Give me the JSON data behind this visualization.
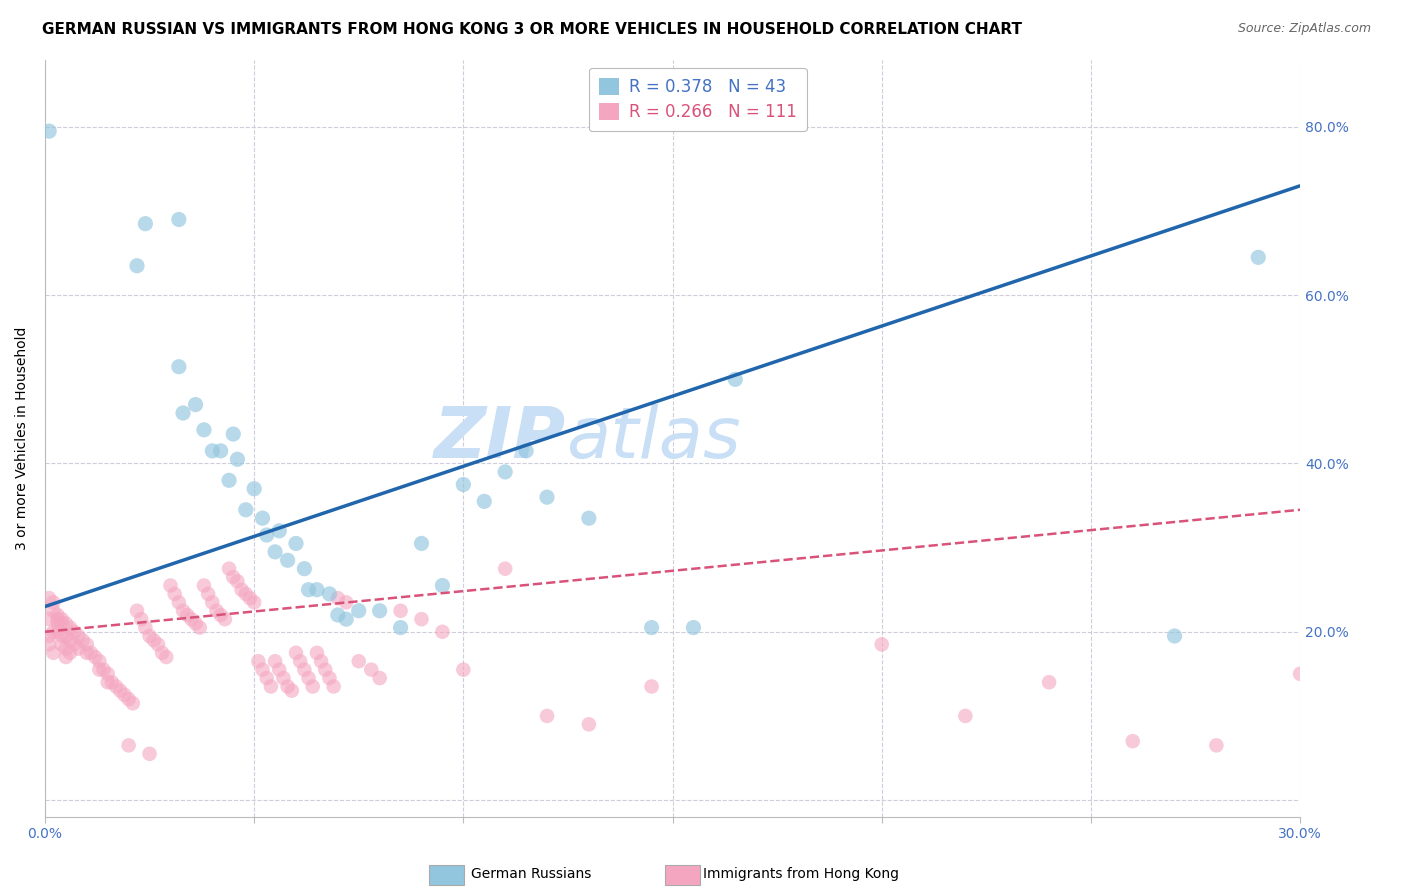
{
  "title": "GERMAN RUSSIAN VS IMMIGRANTS FROM HONG KONG 3 OR MORE VEHICLES IN HOUSEHOLD CORRELATION CHART",
  "source": "Source: ZipAtlas.com",
  "ylabel": "3 or more Vehicles in Household",
  "xmin": 0.0,
  "xmax": 0.3,
  "ymin": -0.02,
  "ymax": 0.88,
  "yticks": [
    0.0,
    0.2,
    0.4,
    0.6,
    0.8
  ],
  "ytick_labels": [
    "",
    "20.0%",
    "40.0%",
    "60.0%",
    "80.0%"
  ],
  "xticks": [
    0.0,
    0.05,
    0.1,
    0.15,
    0.2,
    0.25,
    0.3
  ],
  "xtick_labels": [
    "0.0%",
    "",
    "",
    "",
    "",
    "",
    "30.0%"
  ],
  "watermark_top": "ZIP",
  "watermark_bot": "atlas",
  "legend_entries": [
    {
      "label_r": "R = 0.378",
      "label_n": "N = 43",
      "color": "#6baed6"
    },
    {
      "label_r": "R = 0.266",
      "label_n": "N = 111",
      "color": "#f48fb1"
    }
  ],
  "blue_scatter": [
    [
      0.001,
      0.795
    ],
    [
      0.022,
      0.635
    ],
    [
      0.024,
      0.685
    ],
    [
      0.032,
      0.515
    ],
    [
      0.032,
      0.69
    ],
    [
      0.033,
      0.46
    ],
    [
      0.036,
      0.47
    ],
    [
      0.038,
      0.44
    ],
    [
      0.04,
      0.415
    ],
    [
      0.042,
      0.415
    ],
    [
      0.044,
      0.38
    ],
    [
      0.045,
      0.435
    ],
    [
      0.046,
      0.405
    ],
    [
      0.048,
      0.345
    ],
    [
      0.05,
      0.37
    ],
    [
      0.052,
      0.335
    ],
    [
      0.053,
      0.315
    ],
    [
      0.055,
      0.295
    ],
    [
      0.056,
      0.32
    ],
    [
      0.058,
      0.285
    ],
    [
      0.06,
      0.305
    ],
    [
      0.062,
      0.275
    ],
    [
      0.063,
      0.25
    ],
    [
      0.065,
      0.25
    ],
    [
      0.068,
      0.245
    ],
    [
      0.07,
      0.22
    ],
    [
      0.072,
      0.215
    ],
    [
      0.075,
      0.225
    ],
    [
      0.08,
      0.225
    ],
    [
      0.085,
      0.205
    ],
    [
      0.09,
      0.305
    ],
    [
      0.095,
      0.255
    ],
    [
      0.1,
      0.375
    ],
    [
      0.105,
      0.355
    ],
    [
      0.11,
      0.39
    ],
    [
      0.115,
      0.415
    ],
    [
      0.12,
      0.36
    ],
    [
      0.13,
      0.335
    ],
    [
      0.145,
      0.205
    ],
    [
      0.155,
      0.205
    ],
    [
      0.165,
      0.5
    ],
    [
      0.27,
      0.195
    ],
    [
      0.29,
      0.645
    ]
  ],
  "pink_scatter": [
    [
      0.001,
      0.24
    ],
    [
      0.001,
      0.215
    ],
    [
      0.001,
      0.195
    ],
    [
      0.001,
      0.185
    ],
    [
      0.002,
      0.235
    ],
    [
      0.002,
      0.225
    ],
    [
      0.002,
      0.2
    ],
    [
      0.002,
      0.175
    ],
    [
      0.003,
      0.22
    ],
    [
      0.003,
      0.215
    ],
    [
      0.003,
      0.21
    ],
    [
      0.003,
      0.2
    ],
    [
      0.004,
      0.215
    ],
    [
      0.004,
      0.21
    ],
    [
      0.004,
      0.195
    ],
    [
      0.004,
      0.185
    ],
    [
      0.005,
      0.21
    ],
    [
      0.005,
      0.195
    ],
    [
      0.005,
      0.18
    ],
    [
      0.005,
      0.17
    ],
    [
      0.006,
      0.205
    ],
    [
      0.006,
      0.19
    ],
    [
      0.006,
      0.175
    ],
    [
      0.007,
      0.2
    ],
    [
      0.007,
      0.185
    ],
    [
      0.008,
      0.195
    ],
    [
      0.008,
      0.18
    ],
    [
      0.009,
      0.19
    ],
    [
      0.01,
      0.185
    ],
    [
      0.01,
      0.175
    ],
    [
      0.011,
      0.175
    ],
    [
      0.012,
      0.17
    ],
    [
      0.013,
      0.165
    ],
    [
      0.013,
      0.155
    ],
    [
      0.014,
      0.155
    ],
    [
      0.015,
      0.15
    ],
    [
      0.015,
      0.14
    ],
    [
      0.016,
      0.14
    ],
    [
      0.017,
      0.135
    ],
    [
      0.018,
      0.13
    ],
    [
      0.019,
      0.125
    ],
    [
      0.02,
      0.12
    ],
    [
      0.021,
      0.115
    ],
    [
      0.022,
      0.225
    ],
    [
      0.023,
      0.215
    ],
    [
      0.024,
      0.205
    ],
    [
      0.025,
      0.195
    ],
    [
      0.026,
      0.19
    ],
    [
      0.027,
      0.185
    ],
    [
      0.028,
      0.175
    ],
    [
      0.029,
      0.17
    ],
    [
      0.03,
      0.255
    ],
    [
      0.031,
      0.245
    ],
    [
      0.032,
      0.235
    ],
    [
      0.033,
      0.225
    ],
    [
      0.034,
      0.22
    ],
    [
      0.035,
      0.215
    ],
    [
      0.036,
      0.21
    ],
    [
      0.037,
      0.205
    ],
    [
      0.038,
      0.255
    ],
    [
      0.039,
      0.245
    ],
    [
      0.04,
      0.235
    ],
    [
      0.041,
      0.225
    ],
    [
      0.042,
      0.22
    ],
    [
      0.043,
      0.215
    ],
    [
      0.044,
      0.275
    ],
    [
      0.045,
      0.265
    ],
    [
      0.046,
      0.26
    ],
    [
      0.047,
      0.25
    ],
    [
      0.048,
      0.245
    ],
    [
      0.049,
      0.24
    ],
    [
      0.05,
      0.235
    ],
    [
      0.051,
      0.165
    ],
    [
      0.052,
      0.155
    ],
    [
      0.053,
      0.145
    ],
    [
      0.054,
      0.135
    ],
    [
      0.055,
      0.165
    ],
    [
      0.056,
      0.155
    ],
    [
      0.057,
      0.145
    ],
    [
      0.058,
      0.135
    ],
    [
      0.059,
      0.13
    ],
    [
      0.06,
      0.175
    ],
    [
      0.061,
      0.165
    ],
    [
      0.062,
      0.155
    ],
    [
      0.063,
      0.145
    ],
    [
      0.064,
      0.135
    ],
    [
      0.065,
      0.175
    ],
    [
      0.066,
      0.165
    ],
    [
      0.067,
      0.155
    ],
    [
      0.068,
      0.145
    ],
    [
      0.069,
      0.135
    ],
    [
      0.07,
      0.24
    ],
    [
      0.072,
      0.235
    ],
    [
      0.075,
      0.165
    ],
    [
      0.078,
      0.155
    ],
    [
      0.08,
      0.145
    ],
    [
      0.085,
      0.225
    ],
    [
      0.09,
      0.215
    ],
    [
      0.095,
      0.2
    ],
    [
      0.1,
      0.155
    ],
    [
      0.11,
      0.275
    ],
    [
      0.12,
      0.1
    ],
    [
      0.13,
      0.09
    ],
    [
      0.145,
      0.135
    ],
    [
      0.2,
      0.185
    ],
    [
      0.22,
      0.1
    ],
    [
      0.24,
      0.14
    ],
    [
      0.26,
      0.07
    ],
    [
      0.28,
      0.065
    ],
    [
      0.3,
      0.15
    ],
    [
      0.02,
      0.065
    ],
    [
      0.025,
      0.055
    ]
  ],
  "blue_line": {
    "x0": 0.0,
    "y0": 0.23,
    "x1": 0.3,
    "y1": 0.73
  },
  "pink_line": {
    "x0": 0.0,
    "y0": 0.2,
    "x1": 0.3,
    "y1": 0.345
  },
  "blue_color": "#92c5de",
  "pink_color": "#f4a6c0",
  "blue_line_color": "#2166ac",
  "pink_line_color": "#d9527a",
  "axis_color": "#4472c4",
  "grid_color": "#c8c8d8",
  "background_color": "#ffffff",
  "title_fontsize": 11,
  "source_fontsize": 9,
  "watermark_color": "#c8dff5",
  "ylabel_fontsize": 10,
  "tick_fontsize": 10,
  "legend_fontsize": 12
}
